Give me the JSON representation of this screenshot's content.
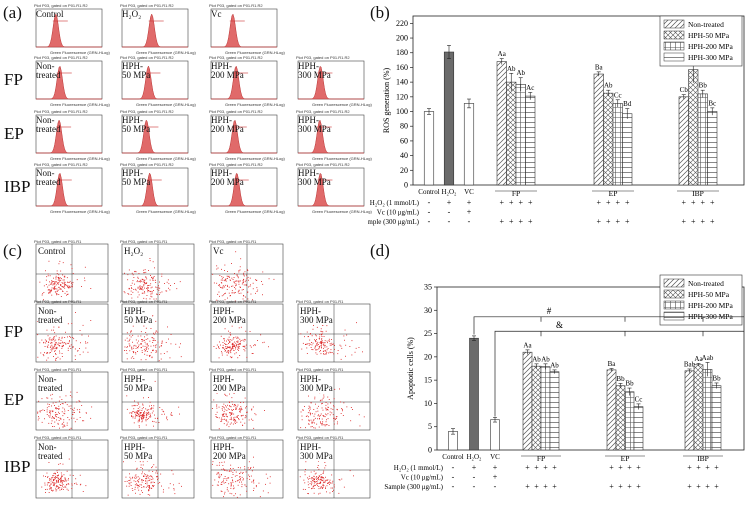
{
  "panel_labels": {
    "a": "(a)",
    "b": "(b)",
    "c": "(c)",
    "d": "(d)"
  },
  "row_labels": [
    "FP",
    "EP",
    "IBP"
  ],
  "flow": {
    "header": "Plot P03, gated on P01.R1.R2",
    "xaxis": "Green Fluorescence (GRN-HLog)",
    "yaxis": "Count",
    "grid": [
      [
        "Control",
        "H₂O₂",
        "Vc",
        null
      ],
      [
        "Non-\ntreated",
        "HPH-\n50 MPa",
        "HPH-\n200 MPa",
        "HPH-\n300 MPa"
      ],
      [
        "Non-\ntreated",
        "HPH-\n50 MPa",
        "HPH-\n200 MPa",
        "HPH-\n300 MPa"
      ],
      [
        "Non-\ntreated",
        "HPH-\n50 MPa",
        "HPH-\n200 MPa",
        "HPH-\n300 MPa"
      ]
    ],
    "peak_positions": [
      [
        0.3,
        0.45,
        0.33,
        null
      ],
      [
        0.36,
        0.4,
        0.38,
        0.34
      ],
      [
        0.35,
        0.37,
        0.36,
        0.33
      ],
      [
        0.36,
        0.42,
        0.39,
        0.34
      ]
    ]
  },
  "dot_plots": {
    "header": "Plot P03, gated on P01.R1",
    "xaxis": "Green Fluorescence (GRN-HLog)",
    "yaxis": "Red Fluorescence (RED-HLog)",
    "grid": [
      [
        "Control",
        "H₂O₂",
        "Vc",
        null
      ],
      [
        "Non-\ntreated",
        "HPH-\n50 MPa",
        "HPH-\n200 MPa",
        "HPH-\n300 MPa"
      ],
      [
        "Non-\ntreated",
        "HPH-\n50 MPa",
        "HPH-\n200 MPa",
        "HPH-\n300 MPa"
      ],
      [
        "Non-\ntreated",
        "HPH-\n50 MPa",
        "HPH-\n200 MPa",
        "HPH-\n300 MPa"
      ]
    ]
  },
  "chart_data": [
    {
      "id": "b",
      "type": "bar",
      "ylabel": "ROS generation (%)",
      "ylim": [
        0,
        230
      ],
      "yticks": [
        0,
        20,
        40,
        60,
        80,
        100,
        120,
        140,
        160,
        180,
        200,
        220
      ],
      "controls": {
        "labels": [
          "Control",
          "H₂O₂",
          "VC"
        ],
        "values": [
          100,
          181,
          111
        ],
        "errors": [
          4,
          9,
          6
        ]
      },
      "groups": [
        "FP",
        "EP",
        "IBP"
      ],
      "series": [
        {
          "name": "Non-treated",
          "values": [
            168,
            151,
            120
          ],
          "errors": [
            4,
            3,
            3
          ]
        },
        {
          "name": "HPH-50 MPa",
          "values": [
            140,
            125,
            157
          ],
          "errors": [
            12,
            4,
            18
          ]
        },
        {
          "name": "HPH-200 MPa",
          "values": [
            137,
            111,
            124
          ],
          "errors": [
            9,
            5,
            5
          ]
        },
        {
          "name": "HPH-300 MPa",
          "values": [
            121,
            97,
            100
          ],
          "errors": [
            5,
            7,
            5
          ]
        }
      ],
      "letters": [
        [
          "Aa",
          "Ab",
          "Ab",
          "Ac"
        ],
        [
          "Ba",
          "Ab",
          "Cc",
          "Bd"
        ],
        [
          "Cb",
          "Aa",
          "Bb",
          "Bc"
        ]
      ],
      "condition_rows": [
        {
          "label": "H₂O₂ (1 mmol/L)",
          "signs": [
            "-",
            "+",
            "+",
            "+",
            "+",
            "+",
            "+",
            "+",
            "+",
            "+",
            "+",
            "+",
            "+",
            "+",
            "+"
          ]
        },
        {
          "label": "Vc (10 μg/mL)",
          "signs": [
            "-",
            "-",
            "+",
            "",
            "",
            "",
            "",
            "",
            "",
            "",
            "",
            "",
            "",
            "",
            ""
          ]
        },
        {
          "label": "Sample (300 μg/mL)",
          "signs": [
            "-",
            "-",
            "-",
            "+",
            "+",
            "+",
            "+",
            "+",
            "+",
            "+",
            "+",
            "+",
            "+",
            "+",
            "+"
          ]
        }
      ]
    },
    {
      "id": "d",
      "type": "bar",
      "ylabel": "Apoptotic cells (%)",
      "ylim": [
        0,
        35
      ],
      "yticks": [
        0,
        5,
        10,
        15,
        20,
        25,
        30,
        35
      ],
      "controls": {
        "labels": [
          "Control",
          "H₂O₂",
          "VC"
        ],
        "values": [
          4,
          24,
          6.5
        ],
        "errors": [
          0.6,
          0.5,
          0.5
        ]
      },
      "groups": [
        "FP",
        "EP",
        "IBP"
      ],
      "series": [
        {
          "name": "Non-treated",
          "values": [
            21,
            17.2,
            17
          ],
          "errors": [
            0.5,
            0.3,
            0.4
          ]
        },
        {
          "name": "HPH-50 MPa",
          "values": [
            18,
            13.8,
            18.3
          ],
          "errors": [
            0.5,
            0.5,
            0.3
          ]
        },
        {
          "name": "HPH-200 MPa",
          "values": [
            17.9,
            12.5,
            17.3
          ],
          "errors": [
            0.6,
            0.8,
            1.5
          ]
        },
        {
          "name": "HPH-300 MPa",
          "values": [
            16.8,
            9.3,
            13.8
          ],
          "errors": [
            0.4,
            0.6,
            0.6
          ]
        }
      ],
      "letters": [
        [
          "Aa",
          "Ab",
          "Ab",
          "Ab"
        ],
        [
          "Ba",
          "Bb",
          "Bb",
          "Cc"
        ],
        [
          "Bab",
          "Aa",
          "Aab",
          "Bb"
        ]
      ],
      "significance": [
        "#",
        "&"
      ],
      "condition_rows": [
        {
          "label": "H₂O₂ (1 mmol/L)",
          "signs": [
            "-",
            "+",
            "+",
            "+",
            "+",
            "+",
            "+",
            "+",
            "+",
            "+",
            "+",
            "+",
            "+",
            "+",
            "+"
          ]
        },
        {
          "label": "Vc (10 μg/mL)",
          "signs": [
            "-",
            "-",
            "+",
            "",
            "",
            "",
            "",
            "",
            "",
            "",
            "",
            "",
            "",
            "",
            ""
          ]
        },
        {
          "label": "Sample (300 μg/mL)",
          "signs": [
            "-",
            "-",
            "-",
            "+",
            "+",
            "+",
            "+",
            "+",
            "+",
            "+",
            "+",
            "+",
            "+",
            "+",
            "+"
          ]
        }
      ]
    }
  ]
}
